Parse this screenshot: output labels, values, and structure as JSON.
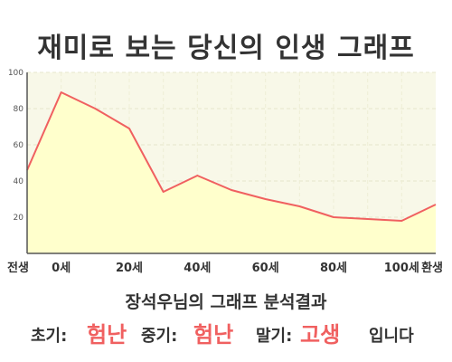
{
  "title": "재미로 보는 당신의 인생 그래프",
  "chart_data": {
    "type": "area",
    "x": [
      "전생",
      "0세",
      "10세",
      "20세",
      "30세",
      "40세",
      "50세",
      "60세",
      "70세",
      "80세",
      "90세",
      "100세",
      "환생"
    ],
    "x_tick_labels": [
      "전생",
      "0세",
      "20세",
      "40세",
      "60세",
      "80세",
      "100세",
      "환생"
    ],
    "series": [
      {
        "values": [
          46,
          89,
          80,
          69,
          34,
          43,
          35,
          30,
          26,
          20,
          19,
          18,
          27
        ]
      }
    ],
    "ylim": [
      0,
      100
    ],
    "y_ticks": [
      20,
      40,
      60,
      80,
      100
    ],
    "grid": true,
    "colors": {
      "line": "#f06060",
      "fill": "#ffffcc",
      "background": "#f8f8e8"
    }
  },
  "summary": {
    "title": "장석우님의 그래프 분석결과",
    "early_label": "초기:",
    "early_value": "험난",
    "middle_label": "중기:",
    "middle_value": "험난",
    "late_label": "말기:",
    "late_value": "고생",
    "ending": "입니다"
  }
}
